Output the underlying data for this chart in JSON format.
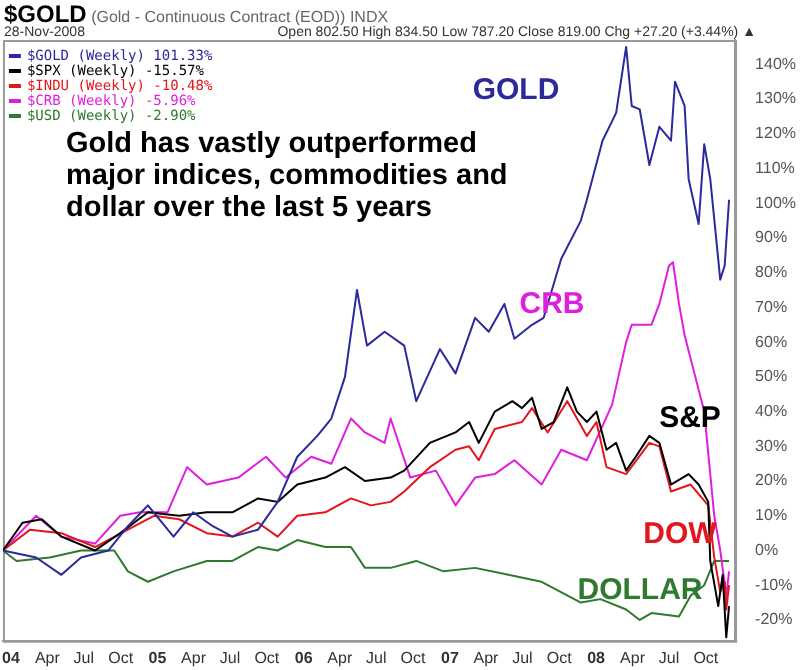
{
  "chart_data": {
    "type": "line",
    "title": "$GOLD (Gold - Continuous Contract (EOD)) INDX",
    "subtitle": "28-Nov-2008",
    "annotations": [
      "Open 802.50 High 834.50 Low 787.20 Close 819.00 Chg +27.20 (+3.44%) ▲",
      "Gold has vastly outperformed major indices, commodities and dollar over the last 5 years",
      "GOLD",
      "S&P",
      "DOW",
      "CRB",
      "DOLLAR"
    ],
    "xlim": [
      "2003-12-12",
      "2008-12-13"
    ],
    "xticks": [
      {
        "value": "2004-01-01",
        "label": "04"
      },
      {
        "value": "2004-04-01",
        "label": "Apr"
      },
      {
        "value": "2004-07-01",
        "label": "Jul"
      },
      {
        "value": "2004-10-01",
        "label": "Oct"
      },
      {
        "value": "2005-01-01",
        "label": "05"
      },
      {
        "value": "2005-04-01",
        "label": "Apr"
      },
      {
        "value": "2005-07-01",
        "label": "Jul"
      },
      {
        "value": "2005-10-01",
        "label": "Oct"
      },
      {
        "value": "2006-01-01",
        "label": "06"
      },
      {
        "value": "2006-04-01",
        "label": "Apr"
      },
      {
        "value": "2006-07-01",
        "label": "Jul"
      },
      {
        "value": "2006-10-01",
        "label": "Oct"
      },
      {
        "value": "2007-01-01",
        "label": "07"
      },
      {
        "value": "2007-04-01",
        "label": "Apr"
      },
      {
        "value": "2007-07-01",
        "label": "Jul"
      },
      {
        "value": "2007-10-01",
        "label": "Oct"
      },
      {
        "value": "2008-01-01",
        "label": "08"
      },
      {
        "value": "2008-04-01",
        "label": "Apr"
      },
      {
        "value": "2008-07-01",
        "label": "Jul"
      },
      {
        "value": "2008-10-01",
        "label": "Oct"
      }
    ],
    "ylim": [
      -26,
      147
    ],
    "yticks": [
      {
        "value": -20,
        "label": "-20%"
      },
      {
        "value": -10,
        "label": "-10%"
      },
      {
        "value": 0,
        "label": "0%"
      },
      {
        "value": 10,
        "label": "10%"
      },
      {
        "value": 20,
        "label": "20%"
      },
      {
        "value": 30,
        "label": "30%"
      },
      {
        "value": 40,
        "label": "40%"
      },
      {
        "value": 50,
        "label": "50%"
      },
      {
        "value": 60,
        "label": "60%"
      },
      {
        "value": 70,
        "label": "70%"
      },
      {
        "value": 80,
        "label": "80%"
      },
      {
        "value": 90,
        "label": "90%"
      },
      {
        "value": 100,
        "label": "100%"
      },
      {
        "value": 110,
        "label": "110%"
      },
      {
        "value": 120,
        "label": "120%"
      },
      {
        "value": 130,
        "label": "130%"
      },
      {
        "value": 140,
        "label": "140%"
      }
    ],
    "legend": "top left",
    "marker": "none",
    "line_style": "solid",
    "series": [
      {
        "name": "$GOLD (Weekly) 101.33%",
        "color": "#2a2a9c",
        "x": [
          "2003-12-12",
          "2004-03-04",
          "2004-05-06",
          "2004-06-24",
          "2004-08-31",
          "2004-10-19",
          "2004-12-08",
          "2005-02-10",
          "2005-03-31",
          "2005-05-19",
          "2005-07-07",
          "2005-09-09",
          "2005-10-28",
          "2005-12-16",
          "2006-02-04",
          "2006-03-11",
          "2006-04-14",
          "2006-05-14",
          "2006-06-08",
          "2006-07-22",
          "2006-09-09",
          "2006-10-09",
          "2006-12-07",
          "2007-01-15",
          "2007-03-05",
          "2007-04-08",
          "2007-05-17",
          "2007-06-11",
          "2007-07-25",
          "2007-08-23",
          "2007-10-06",
          "2007-11-24",
          "2007-12-09",
          "2008-01-17",
          "2008-02-20",
          "2008-03-16",
          "2008-03-30",
          "2008-04-19",
          "2008-05-13",
          "2008-06-07",
          "2008-07-06",
          "2008-07-16",
          "2008-08-09",
          "2008-08-19",
          "2008-09-13",
          "2008-09-27",
          "2008-10-12",
          "2008-11-06",
          "2008-11-17",
          "2008-11-28"
        ],
        "values": [
          0,
          -2,
          -7,
          -2,
          0,
          7,
          13,
          4,
          11,
          7,
          4,
          6,
          14,
          27,
          33,
          38,
          50,
          75,
          59,
          63,
          59,
          43,
          58,
          51,
          67,
          63,
          71,
          61,
          65,
          67,
          84,
          95,
          101,
          118,
          126,
          145,
          128,
          127,
          111,
          122,
          118,
          135,
          128,
          107,
          94,
          117,
          107,
          78,
          82,
          101
        ]
      },
      {
        "name": "$SPX (Weekly) -15.57%",
        "color": "#000000",
        "x": [
          "2003-12-12",
          "2004-01-30",
          "2004-03-18",
          "2004-05-06",
          "2004-07-29",
          "2004-09-30",
          "2004-12-08",
          "2005-02-24",
          "2005-05-04",
          "2005-07-07",
          "2005-09-09",
          "2005-10-28",
          "2005-12-16",
          "2006-02-24",
          "2006-04-14",
          "2006-06-03",
          "2006-08-06",
          "2006-09-09",
          "2006-11-12",
          "2007-01-15",
          "2007-02-18",
          "2007-03-14",
          "2007-04-23",
          "2007-06-06",
          "2007-06-30",
          "2007-07-25",
          "2007-08-18",
          "2007-09-17",
          "2007-10-21",
          "2007-11-14",
          "2007-12-09",
          "2008-01-02",
          "2008-01-27",
          "2008-02-20",
          "2008-03-16",
          "2008-04-09",
          "2008-05-13",
          "2008-06-07",
          "2008-07-06",
          "2008-08-19",
          "2008-09-13",
          "2008-10-07",
          "2008-10-12",
          "2008-11-01",
          "2008-11-12",
          "2008-11-21",
          "2008-11-28"
        ],
        "values": [
          0,
          8,
          9,
          4,
          0,
          5,
          11,
          10,
          11,
          11,
          15,
          14,
          19,
          21,
          24,
          20,
          21,
          23,
          31,
          34,
          37,
          31,
          40,
          43,
          41,
          44,
          35,
          37,
          47,
          40,
          37,
          40,
          29,
          31,
          23,
          27,
          33,
          31,
          19,
          22,
          19,
          14,
          -3,
          -16,
          -7,
          -25,
          -16
        ]
      },
      {
        "name": "$INDU (Weekly) -10.48%",
        "color": "#e3161d",
        "x": [
          "2003-12-12",
          "2004-02-18",
          "2004-05-06",
          "2004-07-29",
          "2004-10-19",
          "2004-12-23",
          "2005-02-24",
          "2005-05-04",
          "2005-07-07",
          "2005-09-09",
          "2005-10-28",
          "2005-12-16",
          "2006-02-24",
          "2006-04-29",
          "2006-06-18",
          "2006-08-06",
          "2006-09-09",
          "2006-11-12",
          "2007-01-15",
          "2007-02-18",
          "2007-03-14",
          "2007-04-23",
          "2007-06-30",
          "2007-07-25",
          "2007-09-02",
          "2007-10-21",
          "2007-12-09",
          "2008-01-02",
          "2008-01-27",
          "2008-03-16",
          "2008-05-13",
          "2008-06-07",
          "2008-07-06",
          "2008-08-24",
          "2008-10-07",
          "2008-10-22",
          "2008-11-06",
          "2008-11-17",
          "2008-11-21",
          "2008-11-28"
        ],
        "values": [
          0,
          6,
          5,
          1,
          6,
          10,
          9,
          5,
          4,
          8,
          4,
          10,
          11,
          15,
          13,
          14,
          17,
          24,
          29,
          30,
          26,
          35,
          37,
          41,
          34,
          43,
          33,
          37,
          24,
          22,
          31,
          30,
          17,
          19,
          13,
          -2,
          -12,
          -9,
          -17,
          -10
        ]
      },
      {
        "name": "$CRB (Weekly) -5.96%",
        "color": "#e01ee0",
        "x": [
          "2003-12-12",
          "2004-03-04",
          "2004-05-06",
          "2004-07-29",
          "2004-09-30",
          "2004-11-18",
          "2005-01-26",
          "2005-03-16",
          "2005-05-04",
          "2005-07-22",
          "2005-09-29",
          "2005-11-17",
          "2006-01-20",
          "2006-03-11",
          "2006-04-29",
          "2006-06-03",
          "2006-07-22",
          "2006-08-06",
          "2006-09-24",
          "2006-11-27",
          "2007-01-15",
          "2007-03-05",
          "2007-04-23",
          "2007-06-11",
          "2007-08-18",
          "2007-10-06",
          "2007-12-09",
          "2008-02-10",
          "2008-03-16",
          "2008-03-30",
          "2008-05-18",
          "2008-06-07",
          "2008-07-01",
          "2008-07-11",
          "2008-07-26",
          "2008-08-09",
          "2008-09-27",
          "2008-10-22",
          "2008-11-06",
          "2008-11-21",
          "2008-11-28"
        ],
        "values": [
          0,
          10,
          4,
          2,
          10,
          11,
          11,
          24,
          19,
          21,
          27,
          21,
          27,
          25,
          38,
          34,
          31,
          38,
          21,
          23,
          13,
          21,
          22,
          26,
          19,
          29,
          26,
          42,
          60,
          65,
          65,
          71,
          82,
          83,
          71,
          62,
          40,
          10,
          0,
          -13,
          -6
        ]
      },
      {
        "name": "$USD (Weekly) -2.90%",
        "color": "#2f7a2f",
        "x": [
          "2003-12-12",
          "2004-01-15",
          "2004-04-07",
          "2004-06-24",
          "2004-09-15",
          "2004-10-19",
          "2004-12-08",
          "2005-02-10",
          "2005-05-04",
          "2005-07-07",
          "2005-09-09",
          "2005-10-28",
          "2005-12-16",
          "2006-02-24",
          "2006-04-29",
          "2006-06-03",
          "2006-08-06",
          "2006-10-09",
          "2006-12-16",
          "2007-03-05",
          "2007-05-27",
          "2007-08-18",
          "2007-11-24",
          "2008-01-12",
          "2008-03-16",
          "2008-04-19",
          "2008-05-18",
          "2008-07-26",
          "2008-08-24",
          "2008-09-27",
          "2008-10-22",
          "2008-11-12",
          "2008-11-28"
        ],
        "values": [
          0,
          -3,
          -2,
          0,
          0,
          -6,
          -9,
          -6,
          -3,
          -3,
          1,
          0,
          3,
          1,
          1,
          -5,
          -5,
          -3,
          -6,
          -5,
          -7,
          -9,
          -15,
          -14,
          -17,
          -20,
          -18,
          -19,
          -13,
          -10,
          -3,
          -3,
          -3
        ]
      }
    ]
  }
}
